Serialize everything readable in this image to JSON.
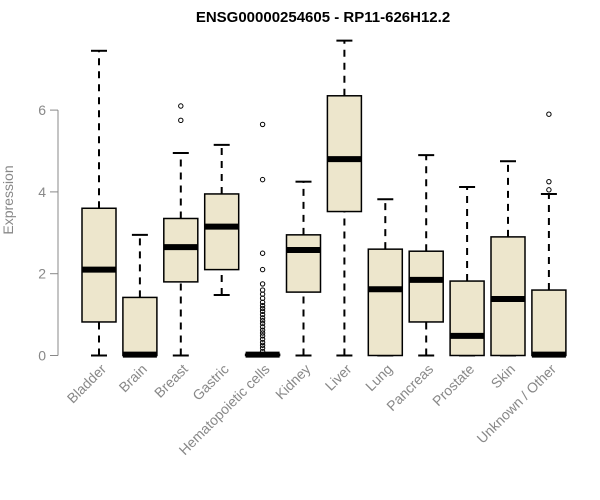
{
  "chart_data": {
    "type": "box",
    "title": "ENSG00000254605 - RP11-626H12.2",
    "xlabel": "",
    "ylabel": "Expression",
    "ylim": [
      0,
      7.8
    ],
    "yticks": [
      0,
      2,
      4,
      6
    ],
    "box_fill": "#ede6cc",
    "categories": [
      "Bladder",
      "Brain",
      "Breast",
      "Gastric",
      "Hematopoietic cells",
      "Kidney",
      "Liver",
      "Lung",
      "Pancreas",
      "Prostate",
      "Skin",
      "Unknown / Other"
    ],
    "boxes": [
      {
        "category": "Bladder",
        "whisker_low": 0,
        "q1": 0.82,
        "median": 2.1,
        "q3": 3.6,
        "whisker_high": 7.45,
        "outliers": []
      },
      {
        "category": "Brain",
        "whisker_low": 0,
        "q1": 0,
        "median": 0.02,
        "q3": 1.42,
        "whisker_high": 2.95,
        "outliers": []
      },
      {
        "category": "Breast",
        "whisker_low": 0,
        "q1": 1.8,
        "median": 2.65,
        "q3": 3.35,
        "whisker_high": 4.95,
        "outliers": [
          5.75,
          6.1
        ]
      },
      {
        "category": "Gastric",
        "whisker_low": 1.48,
        "q1": 2.1,
        "median": 3.15,
        "q3": 3.95,
        "whisker_high": 5.15,
        "outliers": []
      },
      {
        "category": "Hematopoietic cells",
        "whisker_low": 0,
        "q1": 0,
        "median": 0.02,
        "q3": 0.03,
        "whisker_high": 0.05,
        "outliers": [
          0.1,
          0.18,
          0.25,
          0.32,
          0.4,
          0.48,
          0.55,
          0.62,
          0.7,
          0.78,
          0.85,
          0.92,
          1.0,
          1.08,
          1.15,
          1.22,
          1.3,
          1.4,
          1.5,
          1.6,
          1.75,
          2.1,
          2.5,
          4.3,
          5.65
        ]
      },
      {
        "category": "Kidney",
        "whisker_low": 0,
        "q1": 1.55,
        "median": 2.58,
        "q3": 2.95,
        "whisker_high": 4.25,
        "outliers": []
      },
      {
        "category": "Liver",
        "whisker_low": 0,
        "q1": 3.52,
        "median": 4.8,
        "q3": 6.35,
        "whisker_high": 7.7,
        "outliers": []
      },
      {
        "category": "Lung",
        "whisker_low": 0,
        "q1": 0,
        "median": 1.62,
        "q3": 2.6,
        "whisker_high": 3.82,
        "outliers": []
      },
      {
        "category": "Pancreas",
        "whisker_low": 0,
        "q1": 0.82,
        "median": 1.85,
        "q3": 2.55,
        "whisker_high": 4.9,
        "outliers": []
      },
      {
        "category": "Prostate",
        "whisker_low": 0,
        "q1": 0,
        "median": 0.48,
        "q3": 1.82,
        "whisker_high": 4.12,
        "outliers": []
      },
      {
        "category": "Skin",
        "whisker_low": 0,
        "q1": 0,
        "median": 1.38,
        "q3": 2.9,
        "whisker_high": 4.75,
        "outliers": []
      },
      {
        "category": "Unknown / Other",
        "whisker_low": 0,
        "q1": 0,
        "median": 0.02,
        "q3": 1.6,
        "whisker_high": 3.95,
        "outliers": [
          4.05,
          4.25,
          5.9
        ]
      }
    ]
  }
}
